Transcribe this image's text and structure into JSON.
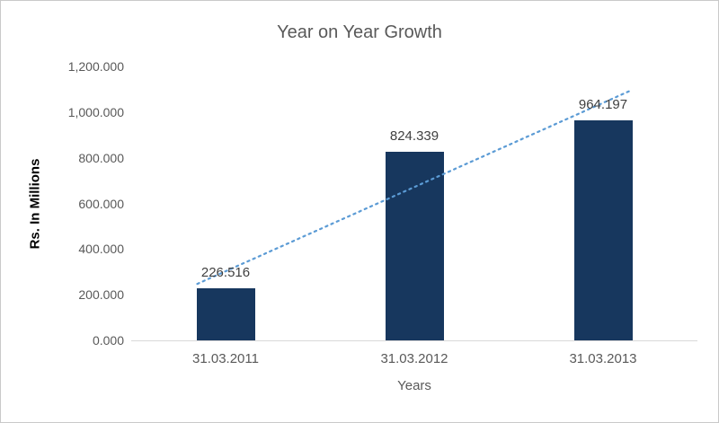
{
  "chart_data": {
    "type": "bar",
    "title": "Year on Year Growth",
    "categories": [
      "31.03.2011",
      "31.03.2012",
      "31.03.2013"
    ],
    "values": [
      226.516,
      824.339,
      964.197
    ],
    "data_labels": [
      "226.516",
      "824.339",
      "964.197"
    ],
    "xlabel": "Years",
    "ylabel": "Rs. In Millions",
    "ylim": [
      0,
      1200
    ],
    "ytick_step": 200,
    "ytick_labels": [
      "0.000",
      "200.000",
      "400.000",
      "600.000",
      "800.000",
      "1,000.000",
      "1,200.000"
    ],
    "grid": false,
    "legend": false,
    "trendline": true,
    "colors": {
      "bar": "#17375E",
      "trendline": "#5B9BD5",
      "title": "#595959",
      "axis_text": "#595959",
      "data_label": "#404040",
      "axis_line": "#D9D9D9",
      "border": "#C9C9C9"
    }
  }
}
